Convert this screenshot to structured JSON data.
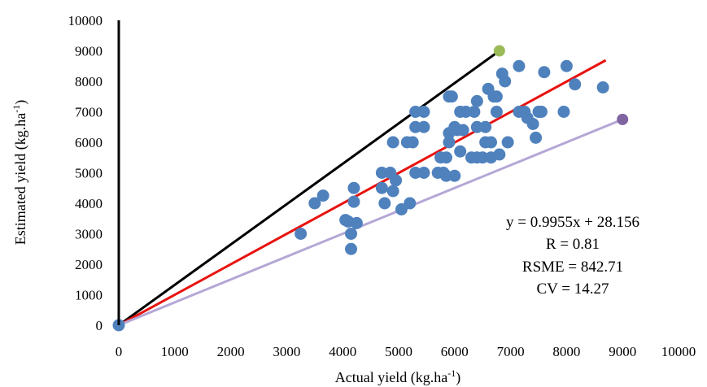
{
  "chart_data": {
    "type": "scatter",
    "xlabel": "Actual yield (kg.ha",
    "xlabel_sup": "-1",
    "xlabel_end": ")",
    "ylabel": "Estimated yield (kg.ha",
    "ylabel_sup": "-1",
    "ylabel_end": ")",
    "xlim": [
      0,
      10000
    ],
    "ylim": [
      0,
      10000
    ],
    "xticks": [
      0,
      1000,
      2000,
      3000,
      4000,
      5000,
      6000,
      7000,
      8000,
      9000,
      10000
    ],
    "yticks": [
      0,
      1000,
      2000,
      3000,
      4000,
      5000,
      6000,
      7000,
      8000,
      9000,
      10000
    ],
    "grid": false,
    "points": [
      [
        3250,
        3000
      ],
      [
        3500,
        4000
      ],
      [
        3650,
        4250
      ],
      [
        4050,
        3450
      ],
      [
        4100,
        3400
      ],
      [
        4150,
        3000
      ],
      [
        4150,
        2500
      ],
      [
        4200,
        4500
      ],
      [
        4200,
        4050
      ],
      [
        4250,
        3350
      ],
      [
        4700,
        4500
      ],
      [
        4700,
        5000
      ],
      [
        4750,
        4000
      ],
      [
        4850,
        5000
      ],
      [
        4900,
        6000
      ],
      [
        4900,
        4400
      ],
      [
        4950,
        4750
      ],
      [
        5050,
        3800
      ],
      [
        5200,
        4000
      ],
      [
        5150,
        6000
      ],
      [
        5250,
        6000
      ],
      [
        5300,
        7000
      ],
      [
        5300,
        5000
      ],
      [
        5300,
        6500
      ],
      [
        5450,
        7000
      ],
      [
        5450,
        6500
      ],
      [
        5450,
        5000
      ],
      [
        5700,
        5000
      ],
      [
        5750,
        5500
      ],
      [
        5800,
        5000
      ],
      [
        5850,
        4900
      ],
      [
        5850,
        5500
      ],
      [
        5900,
        6000
      ],
      [
        5900,
        6300
      ],
      [
        5900,
        7500
      ],
      [
        5950,
        7500
      ],
      [
        6000,
        6500
      ],
      [
        6000,
        4900
      ],
      [
        6050,
        6400
      ],
      [
        6100,
        7000
      ],
      [
        6100,
        5700
      ],
      [
        6150,
        6400
      ],
      [
        6200,
        7000
      ],
      [
        6300,
        5500
      ],
      [
        6350,
        7000
      ],
      [
        6400,
        6500
      ],
      [
        6400,
        7350
      ],
      [
        6400,
        5500
      ],
      [
        6500,
        5500
      ],
      [
        6550,
        6500
      ],
      [
        6550,
        6000
      ],
      [
        6600,
        7750
      ],
      [
        6650,
        6000
      ],
      [
        6650,
        5500
      ],
      [
        6700,
        7500
      ],
      [
        6750,
        7500
      ],
      [
        6750,
        7000
      ],
      [
        6800,
        5600
      ],
      [
        6850,
        8250
      ],
      [
        6900,
        8000
      ],
      [
        6950,
        6000
      ],
      [
        7150,
        8500
      ],
      [
        7150,
        7000
      ],
      [
        7250,
        7000
      ],
      [
        7300,
        6800
      ],
      [
        7400,
        6600
      ],
      [
        7450,
        6150
      ],
      [
        7500,
        7000
      ],
      [
        7550,
        7000
      ],
      [
        7600,
        8300
      ],
      [
        7950,
        7000
      ],
      [
        8000,
        8500
      ],
      [
        8150,
        7900
      ],
      [
        8650,
        7800
      ],
      [
        0,
        0
      ]
    ],
    "reference_lines": [
      {
        "color": "#000000",
        "from": [
          0,
          0
        ],
        "to": [
          6800,
          9000
        ],
        "endpoint_color": "#9BBB59"
      },
      {
        "color": "#E8130F",
        "from": [
          0,
          0
        ],
        "to": [
          8700,
          8690
        ]
      },
      {
        "color": "#B4A7D6",
        "from": [
          0,
          0
        ],
        "to": [
          9000,
          6750
        ],
        "endpoint_color": "#8064A2"
      }
    ],
    "point_color": "#4F81BD",
    "annotations": [
      "y = 0.9955x + 28.156",
      "R = 0.81",
      "RSME = 842.71",
      "CV = 14.27"
    ]
  }
}
